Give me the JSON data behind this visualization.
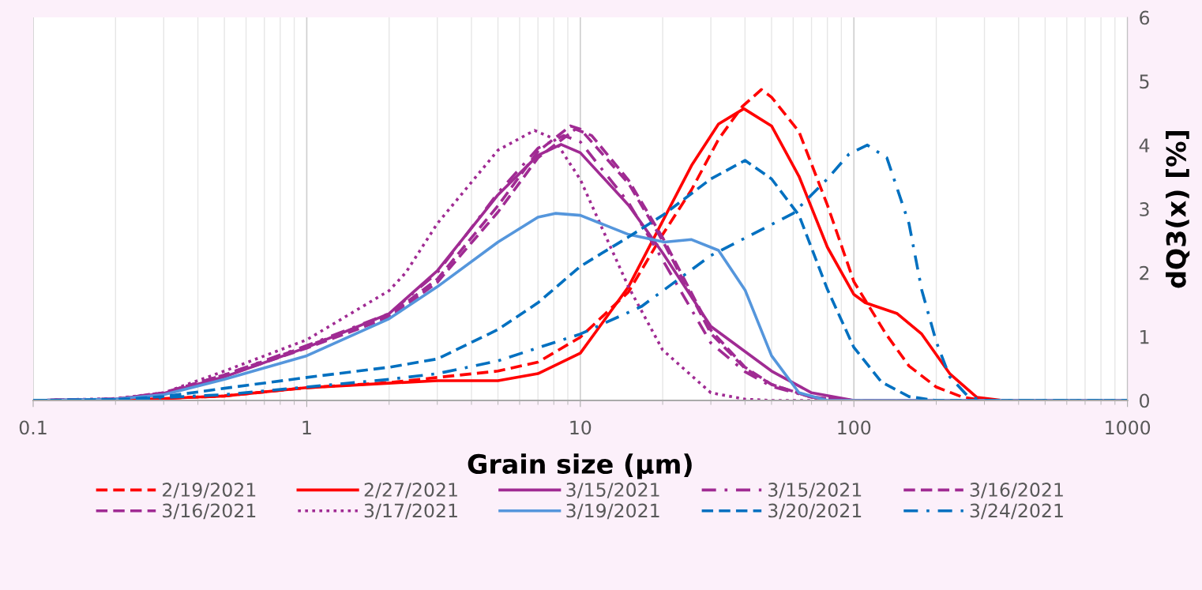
{
  "chart_data": {
    "type": "line",
    "xlabel": "Grain size (µm)",
    "ylabel": "dQ3(x) [%]",
    "log": "x",
    "grid": "x",
    "legend": "bottom",
    "xlim": [
      0.1,
      1000
    ],
    "xticks": [
      0.1,
      1,
      10,
      100,
      1000
    ],
    "ylim": [
      0,
      6
    ],
    "yticks": [
      0,
      1,
      2,
      3,
      4,
      5,
      6
    ],
    "series": [
      {
        "name": "2/19/2021",
        "color": "#ff0000",
        "line_style": "dashed",
        "x": [
          0.1,
          0.2,
          0.5,
          1,
          2,
          3,
          5,
          7,
          10,
          15,
          20,
          25.5,
          32,
          39,
          45.9,
          50,
          63,
          80,
          100,
          131,
          159,
          200,
          250,
          300,
          1000
        ],
        "values": [
          0,
          0,
          0.07,
          0.2,
          0.28,
          0.36,
          0.46,
          0.6,
          0.99,
          1.7,
          2.6,
          3.3,
          4.09,
          4.6,
          4.87,
          4.75,
          4.21,
          3.06,
          1.86,
          1.04,
          0.54,
          0.21,
          0.05,
          0,
          0
        ]
      },
      {
        "name": "2/27/2021",
        "color": "#ff0000",
        "line_style": "solid",
        "x": [
          0.1,
          0.2,
          0.5,
          1,
          2,
          3,
          5,
          7,
          10,
          15,
          20,
          25.5,
          32,
          39.6,
          50,
          63,
          80,
          100,
          110,
          144,
          177,
          224,
          281,
          350,
          1000
        ],
        "values": [
          0,
          0,
          0.07,
          0.2,
          0.27,
          0.31,
          0.31,
          0.42,
          0.74,
          1.78,
          2.81,
          3.68,
          4.33,
          4.57,
          4.3,
          3.51,
          2.4,
          1.66,
          1.53,
          1.36,
          1.04,
          0.42,
          0.05,
          0,
          0
        ]
      },
      {
        "name": "3/15/2021",
        "color": "#a02b93",
        "line_style": "solid",
        "x": [
          0.1,
          0.2,
          0.3,
          0.5,
          1,
          2,
          3,
          5,
          7,
          8.5,
          10,
          15,
          20,
          30,
          50,
          70,
          100,
          1000
        ],
        "values": [
          0,
          0.02,
          0.11,
          0.37,
          0.83,
          1.36,
          2.03,
          3.22,
          3.84,
          4.01,
          3.88,
          3.06,
          2.31,
          1.16,
          0.46,
          0.12,
          0,
          0
        ]
      },
      {
        "name": "3/15/2021",
        "color": "#a02b93",
        "line_style": "dashdot",
        "x": [
          0.1,
          0.2,
          0.3,
          0.5,
          1,
          2,
          3,
          5,
          7,
          8.7,
          10,
          15,
          20,
          30,
          40,
          50,
          70,
          100,
          1000
        ],
        "values": [
          0,
          0.02,
          0.12,
          0.4,
          0.86,
          1.36,
          2.0,
          3.25,
          3.95,
          4.15,
          4.05,
          3.1,
          2.2,
          0.9,
          0.45,
          0.22,
          0.05,
          0,
          0
        ]
      },
      {
        "name": "3/16/2021",
        "color": "#a02b93",
        "line_style": "dashed",
        "x": [
          0.1,
          0.2,
          0.3,
          0.5,
          1,
          2,
          3,
          5,
          7,
          9.2,
          10,
          15,
          20,
          30,
          40,
          50,
          70,
          100,
          1000
        ],
        "values": [
          0,
          0.02,
          0.12,
          0.4,
          0.85,
          1.33,
          1.9,
          3.05,
          3.9,
          4.3,
          4.25,
          3.4,
          2.5,
          1.05,
          0.5,
          0.25,
          0.05,
          0,
          0
        ]
      },
      {
        "name": "3/16/2021",
        "color": "#a02b93",
        "line_style": "dashed",
        "x": [
          0.1,
          0.2,
          0.3,
          0.5,
          1,
          2,
          3,
          5,
          7,
          9.6,
          11,
          15,
          20,
          30,
          40,
          50,
          70,
          100,
          1000
        ],
        "values": [
          0,
          0.02,
          0.11,
          0.38,
          0.82,
          1.3,
          1.85,
          2.95,
          3.8,
          4.25,
          4.15,
          3.45,
          2.55,
          1.1,
          0.52,
          0.25,
          0.05,
          0,
          0
        ]
      },
      {
        "name": "3/17/2021",
        "color": "#a02b93",
        "line_style": "dotted",
        "x": [
          0.1,
          0.2,
          0.3,
          0.5,
          1,
          2,
          2.3,
          3,
          5,
          6.8,
          8,
          10,
          12,
          15,
          20,
          30,
          40,
          50,
          1000
        ],
        "values": [
          0,
          0.03,
          0.12,
          0.46,
          0.95,
          1.72,
          2.0,
          2.77,
          3.92,
          4.23,
          4.1,
          3.46,
          2.7,
          1.78,
          0.79,
          0.12,
          0.02,
          0,
          0
        ]
      },
      {
        "name": "3/19/2021",
        "color": "#5596dc",
        "line_style": "solid",
        "x": [
          0.1,
          0.2,
          0.3,
          0.5,
          1,
          2,
          3,
          5,
          7,
          8.1,
          10,
          15,
          20.3,
          25.5,
          32,
          40,
          50,
          63,
          80,
          1000
        ],
        "values": [
          0,
          0.02,
          0.09,
          0.33,
          0.7,
          1.28,
          1.78,
          2.48,
          2.87,
          2.93,
          2.9,
          2.6,
          2.48,
          2.52,
          2.35,
          1.73,
          0.7,
          0.12,
          0,
          0
        ]
      },
      {
        "name": "3/20/2021",
        "color": "#0070c0",
        "line_style": "dashed",
        "x": [
          0.1,
          0.2,
          0.3,
          0.5,
          1,
          2,
          3,
          5,
          7,
          10,
          15,
          20,
          30,
          40,
          50,
          63,
          80,
          100,
          126,
          159,
          200,
          1000
        ],
        "values": [
          0,
          0.01,
          0.06,
          0.19,
          0.36,
          0.52,
          0.65,
          1.11,
          1.53,
          2.1,
          2.56,
          2.9,
          3.47,
          3.76,
          3.47,
          2.9,
          1.74,
          0.83,
          0.29,
          0.06,
          0,
          0
        ]
      },
      {
        "name": "3/24/2021",
        "color": "#0070c0",
        "line_style": "dashdot",
        "x": [
          0.1,
          0.2,
          0.5,
          1,
          2,
          3,
          5,
          10,
          16.7,
          30,
          60,
          80,
          96,
          112,
          132,
          159,
          177,
          200,
          224,
          262,
          300,
          1000
        ],
        "values": [
          0,
          0.01,
          0.09,
          0.21,
          0.33,
          0.42,
          0.62,
          1.04,
          1.47,
          2.27,
          2.93,
          3.47,
          3.86,
          4.0,
          3.8,
          2.77,
          1.73,
          0.92,
          0.37,
          0.06,
          0,
          0
        ]
      }
    ]
  }
}
